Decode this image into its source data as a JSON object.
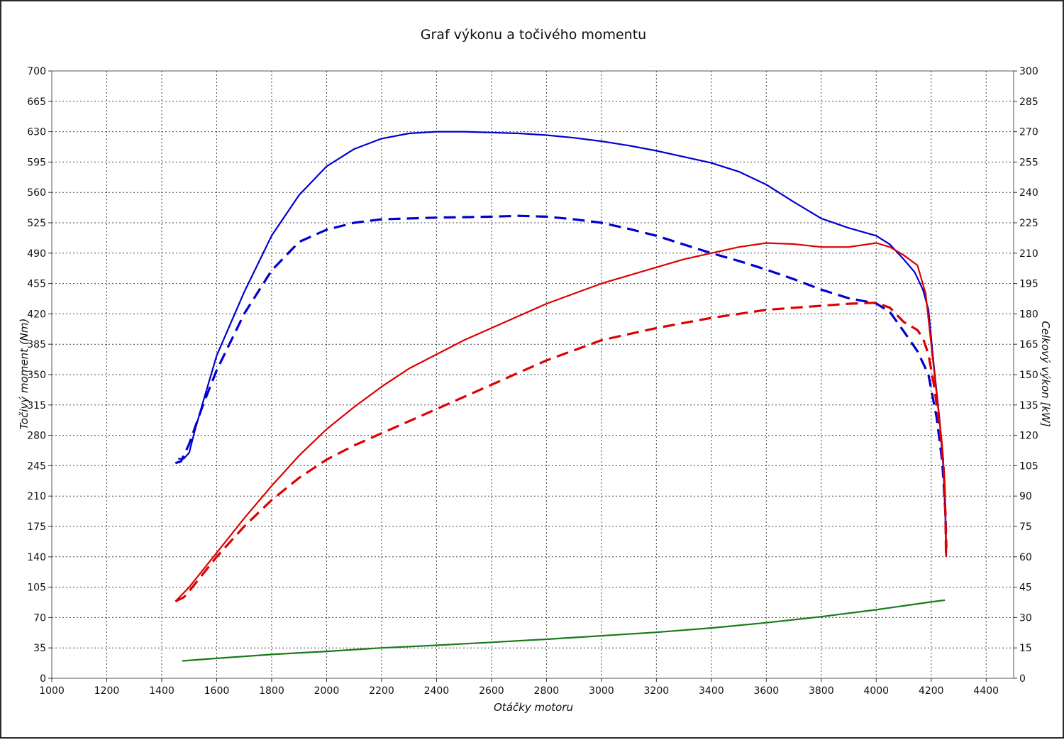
{
  "chart_data": {
    "type": "line",
    "title": "Graf výkonu a točivého momentu",
    "xlabel": "Otáčky motoru",
    "ylabel_left": "Točivý moment (Nm)",
    "ylabel_right": "Celkový výkon [kW]",
    "xlim": [
      1000,
      4500
    ],
    "ylim_left": [
      0,
      700
    ],
    "ylim_right": [
      0,
      300
    ],
    "grid": true,
    "x_ticks": [
      1000,
      1200,
      1400,
      1600,
      1800,
      2000,
      2200,
      2400,
      2600,
      2800,
      3000,
      3200,
      3400,
      3600,
      3800,
      4000,
      4200,
      4400
    ],
    "y_ticks_left": [
      0,
      35,
      70,
      105,
      140,
      175,
      210,
      245,
      280,
      315,
      350,
      385,
      420,
      455,
      490,
      525,
      560,
      595,
      630,
      665,
      700
    ],
    "y_ticks_right": [
      0,
      15,
      30,
      45,
      60,
      75,
      90,
      105,
      120,
      135,
      150,
      165,
      180,
      195,
      210,
      225,
      240,
      255,
      270,
      285,
      300
    ],
    "series": [
      {
        "axis": "left",
        "color": "#0000d0",
        "style": "solid",
        "width": 2.2,
        "points": [
          [
            1460,
            253
          ],
          [
            1480,
            253
          ],
          [
            1500,
            260
          ],
          [
            1520,
            285
          ],
          [
            1550,
            318
          ],
          [
            1600,
            372
          ],
          [
            1700,
            445
          ],
          [
            1800,
            510
          ],
          [
            1900,
            557
          ],
          [
            2000,
            590
          ],
          [
            2100,
            610
          ],
          [
            2200,
            622
          ],
          [
            2300,
            628
          ],
          [
            2400,
            630
          ],
          [
            2500,
            630
          ],
          [
            2600,
            629
          ],
          [
            2700,
            628
          ],
          [
            2800,
            626
          ],
          [
            2900,
            623
          ],
          [
            3000,
            619
          ],
          [
            3100,
            614
          ],
          [
            3200,
            608
          ],
          [
            3300,
            601
          ],
          [
            3400,
            594
          ],
          [
            3500,
            584
          ],
          [
            3600,
            569
          ],
          [
            3700,
            549
          ],
          [
            3800,
            530
          ],
          [
            3900,
            519
          ],
          [
            4000,
            510
          ],
          [
            4050,
            500
          ],
          [
            4100,
            483
          ],
          [
            4140,
            468
          ],
          [
            4170,
            448
          ],
          [
            4190,
            425
          ],
          [
            4210,
            360
          ],
          [
            4230,
            300
          ],
          [
            4245,
            240
          ],
          [
            4252,
            180
          ],
          [
            4254,
            140
          ]
        ]
      },
      {
        "axis": "left",
        "color": "#0000d0",
        "style": "dashed",
        "width": 3.2,
        "points": [
          [
            1450,
            248
          ],
          [
            1470,
            250
          ],
          [
            1500,
            270
          ],
          [
            1550,
            315
          ],
          [
            1600,
            355
          ],
          [
            1700,
            420
          ],
          [
            1800,
            470
          ],
          [
            1900,
            503
          ],
          [
            2000,
            517
          ],
          [
            2100,
            525
          ],
          [
            2200,
            529
          ],
          [
            2400,
            531
          ],
          [
            2600,
            532
          ],
          [
            2700,
            533
          ],
          [
            2800,
            532
          ],
          [
            2900,
            529
          ],
          [
            3000,
            525
          ],
          [
            3100,
            518
          ],
          [
            3200,
            510
          ],
          [
            3300,
            500
          ],
          [
            3400,
            490
          ],
          [
            3500,
            481
          ],
          [
            3600,
            471
          ],
          [
            3700,
            460
          ],
          [
            3800,
            448
          ],
          [
            3900,
            438
          ],
          [
            4000,
            432
          ],
          [
            4050,
            422
          ],
          [
            4100,
            400
          ],
          [
            4150,
            377
          ],
          [
            4190,
            350
          ],
          [
            4220,
            300
          ],
          [
            4240,
            250
          ],
          [
            4252,
            190
          ],
          [
            4255,
            150
          ]
        ]
      },
      {
        "axis": "right",
        "color": "#dd0000",
        "style": "solid",
        "width": 2.2,
        "points": [
          [
            1450,
            38
          ],
          [
            1500,
            45
          ],
          [
            1600,
            62
          ],
          [
            1700,
            79
          ],
          [
            1800,
            95
          ],
          [
            1900,
            110
          ],
          [
            2000,
            123
          ],
          [
            2100,
            134
          ],
          [
            2200,
            144
          ],
          [
            2300,
            153
          ],
          [
            2400,
            160
          ],
          [
            2500,
            167
          ],
          [
            2600,
            173
          ],
          [
            2700,
            179
          ],
          [
            2800,
            185
          ],
          [
            2900,
            190
          ],
          [
            3000,
            195
          ],
          [
            3100,
            199
          ],
          [
            3200,
            203
          ],
          [
            3300,
            207
          ],
          [
            3400,
            210
          ],
          [
            3500,
            213
          ],
          [
            3600,
            215
          ],
          [
            3700,
            214.5
          ],
          [
            3800,
            213
          ],
          [
            3900,
            213
          ],
          [
            4000,
            215
          ],
          [
            4050,
            213
          ],
          [
            4100,
            209
          ],
          [
            4150,
            204
          ],
          [
            4180,
            190
          ],
          [
            4200,
            165
          ],
          [
            4220,
            140
          ],
          [
            4240,
            115
          ],
          [
            4250,
            95
          ],
          [
            4254,
            70
          ],
          [
            4255,
            60
          ]
        ]
      },
      {
        "axis": "right",
        "color": "#dd0000",
        "style": "dashed",
        "width": 3.2,
        "points": [
          [
            1450,
            38
          ],
          [
            1480,
            40
          ],
          [
            1500,
            43
          ],
          [
            1600,
            60
          ],
          [
            1700,
            75
          ],
          [
            1800,
            88
          ],
          [
            1900,
            99
          ],
          [
            2000,
            108
          ],
          [
            2100,
            115
          ],
          [
            2200,
            121
          ],
          [
            2300,
            127
          ],
          [
            2400,
            133
          ],
          [
            2500,
            139
          ],
          [
            2600,
            145
          ],
          [
            2700,
            151
          ],
          [
            2800,
            157
          ],
          [
            2900,
            162
          ],
          [
            3000,
            167
          ],
          [
            3100,
            170
          ],
          [
            3200,
            173
          ],
          [
            3300,
            175.5
          ],
          [
            3400,
            178
          ],
          [
            3500,
            180
          ],
          [
            3600,
            182
          ],
          [
            3700,
            183
          ],
          [
            3800,
            184
          ],
          [
            3900,
            185
          ],
          [
            4000,
            185.5
          ],
          [
            4050,
            183
          ],
          [
            4100,
            176
          ],
          [
            4150,
            172
          ],
          [
            4170,
            168
          ],
          [
            4190,
            160
          ],
          [
            4210,
            145
          ],
          [
            4230,
            125
          ],
          [
            4245,
            105
          ],
          [
            4252,
            80
          ],
          [
            4254,
            60
          ]
        ]
      },
      {
        "axis": "left",
        "color": "#1a7a1a",
        "style": "solid",
        "width": 2.2,
        "points": [
          [
            1475,
            20
          ],
          [
            1600,
            23
          ],
          [
            1800,
            27.5
          ],
          [
            2000,
            31
          ],
          [
            2200,
            35
          ],
          [
            2400,
            38
          ],
          [
            2600,
            41.5
          ],
          [
            2800,
            45
          ],
          [
            3000,
            49
          ],
          [
            3200,
            53
          ],
          [
            3400,
            58
          ],
          [
            3600,
            64
          ],
          [
            3800,
            71
          ],
          [
            4000,
            79
          ],
          [
            4100,
            83.5
          ],
          [
            4200,
            88
          ],
          [
            4250,
            90
          ]
        ]
      }
    ]
  }
}
